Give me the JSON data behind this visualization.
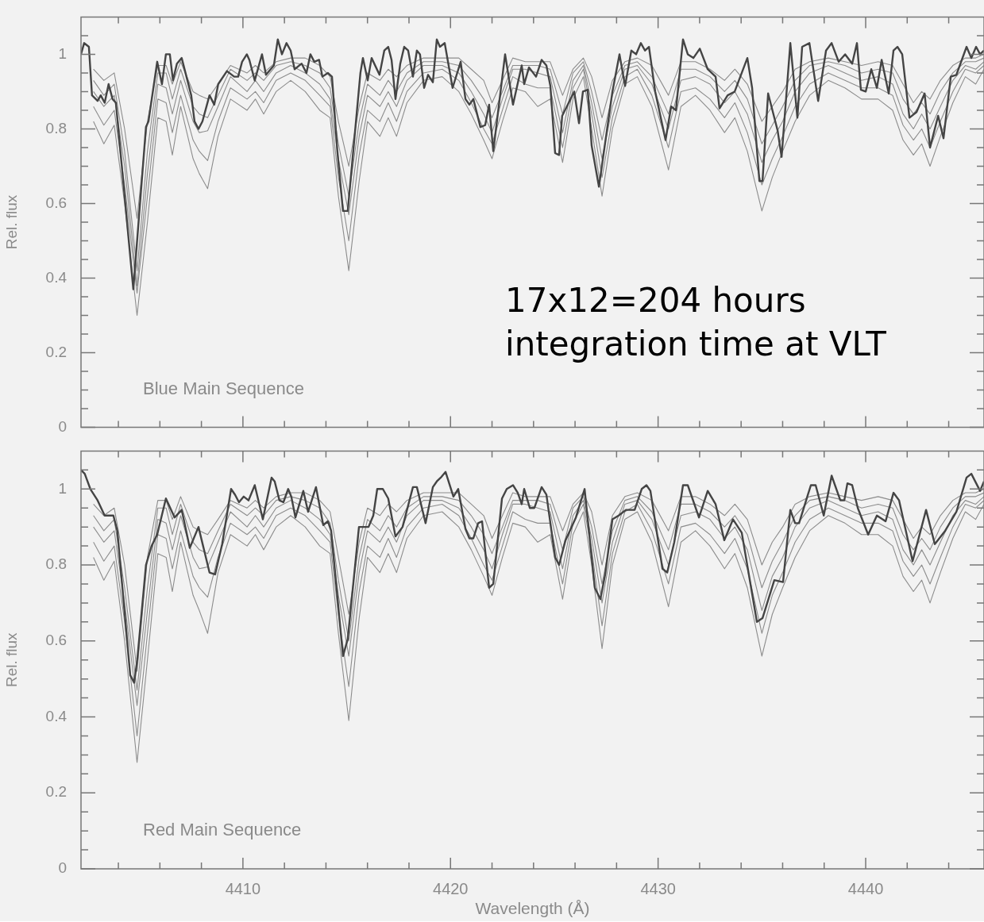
{
  "chart_data": [
    {
      "type": "line",
      "ylabel": "Rel. flux",
      "ylim": [
        0,
        1.1
      ],
      "xlim": [
        4402.2,
        4445.7
      ],
      "tick_labels": "y",
      "legend": false,
      "marker": "none",
      "line_style": "solid",
      "yticks": [
        0,
        {
          "value": 0.05,
          "label": null
        },
        {
          "value": 0.1,
          "label": null
        },
        {
          "value": 0.15,
          "label": null
        },
        0.2,
        {
          "value": 0.25,
          "label": null
        },
        {
          "value": 0.3,
          "label": null
        },
        {
          "value": 0.35,
          "label": null
        },
        0.4,
        {
          "value": 0.45,
          "label": null
        },
        {
          "value": 0.5,
          "label": null
        },
        {
          "value": 0.55,
          "label": null
        },
        0.6,
        {
          "value": 0.65,
          "label": null
        },
        {
          "value": 0.7,
          "label": null
        },
        {
          "value": 0.75,
          "label": null
        },
        0.8,
        {
          "value": 0.85,
          "label": null
        },
        {
          "value": 0.9,
          "label": null
        },
        {
          "value": 0.95,
          "label": null
        },
        1,
        {
          "value": 1.05,
          "label": null
        }
      ],
      "xticks": [
        {
          "value": 4404,
          "label": null
        },
        {
          "value": 4406,
          "label": null
        },
        {
          "value": 4408,
          "label": null
        },
        4410,
        {
          "value": 4412,
          "label": null
        },
        {
          "value": 4414,
          "label": null
        },
        {
          "value": 4416,
          "label": null
        },
        {
          "value": 4418,
          "label": null
        },
        4420,
        {
          "value": 4422,
          "label": null
        },
        {
          "value": 4424,
          "label": null
        },
        {
          "value": 4426,
          "label": null
        },
        {
          "value": 4428,
          "label": null
        },
        4430,
        {
          "value": 4432,
          "label": null
        },
        {
          "value": 4434,
          "label": null
        },
        {
          "value": 4436,
          "label": null
        },
        {
          "value": 4438,
          "label": null
        },
        4440,
        {
          "value": 4442,
          "label": null
        },
        {
          "value": 4444,
          "label": null
        }
      ],
      "annotations": [
        "Blue Main Sequence",
        "17x12=204 hours integration time at VLT"
      ],
      "x": [
        4402.8,
        4403.3,
        4403.8,
        4404.3,
        4404.9,
        4405.4,
        4405.9,
        4406.3,
        4406.6,
        4407.0,
        4407.6,
        4407.9,
        4408.3,
        4408.8,
        4409.4,
        4410.2,
        4410.6,
        4411.0,
        4411.6,
        4412.3,
        4413.0,
        4413.7,
        4414.2,
        4414.6,
        4415.1,
        4415.6,
        4416.0,
        4416.6,
        4417.0,
        4417.4,
        4417.9,
        4418.7,
        4419.6,
        4420.4,
        4421.0,
        4421.6,
        4422.0,
        4422.5,
        4423.0,
        4423.6,
        4424.2,
        4424.8,
        4425.4,
        4425.9,
        4426.4,
        4426.8,
        4427.3,
        4427.8,
        4428.4,
        4429.0,
        4429.7,
        4430.5,
        4431.1,
        4431.8,
        4432.5,
        4433.2,
        4433.7,
        4434.3,
        4435.0,
        4435.5,
        4436.0,
        4436.6,
        4437.3,
        4438.2,
        4439.0,
        4439.8,
        4440.6,
        4441.3,
        4441.8,
        4442.3,
        4442.7,
        4443.1,
        4443.6,
        4444.2,
        4444.8,
        4445.3,
        4445.7
      ],
      "series": [
        {
          "color": "#444444",
          "x": [
            4402.2,
            4402.35,
            4402.58,
            4402.73,
            4403.0,
            4403.15,
            4403.34,
            4403.53,
            4403.72,
            4403.88,
            4404.72,
            4405.33,
            4405.45,
            4405.87,
            4406.1,
            4406.29,
            4406.48,
            4406.63,
            4406.82,
            4407.05,
            4407.51,
            4407.67,
            4407.86,
            4408.05,
            4408.39,
            4408.62,
            4408.81,
            4409.23,
            4409.58,
            4409.77,
            4409.96,
            4410.19,
            4410.31,
            4410.57,
            4410.92,
            4411.11,
            4411.49,
            4411.68,
            4411.88,
            4412.1,
            4412.3,
            4412.49,
            4412.83,
            4413.06,
            4413.25,
            4413.44,
            4413.67,
            4413.83,
            4414.09,
            4414.29,
            4414.55,
            4414.82,
            4415.05,
            4415.66,
            4415.78,
            4416.01,
            4416.2,
            4416.58,
            4416.81,
            4417.0,
            4417.16,
            4417.35,
            4417.58,
            4417.77,
            4417.96,
            4418.19,
            4418.38,
            4418.53,
            4418.73,
            4418.92,
            4419.15,
            4419.34,
            4419.49,
            4419.72,
            4420.1,
            4420.49,
            4420.72,
            4420.91,
            4421.1,
            4421.44,
            4421.67,
            4421.86,
            4422.06,
            4422.63,
            4423.01,
            4423.43,
            4423.55,
            4423.78,
            4424.12,
            4424.39,
            4424.62,
            4424.81,
            4425.04,
            4425.23,
            4425.38,
            4425.96,
            4426.19,
            4426.38,
            4426.61,
            4426.8,
            4427.15,
            4427.8,
            4428.14,
            4428.41,
            4428.71,
            4428.94,
            4429.17,
            4429.37,
            4429.56,
            4429.86,
            4430.36,
            4430.63,
            4430.86,
            4431.2,
            4431.43,
            4431.7,
            4432.01,
            4432.39,
            4432.77,
            4432.96,
            4433.35,
            4433.69,
            4434.3,
            4434.53,
            4434.88,
            4435.03,
            4435.3,
            4435.76,
            4435.95,
            4436.37,
            4436.71,
            4436.94,
            4437.29,
            4437.71,
            4438.09,
            4438.36,
            4438.7,
            4439.01,
            4439.35,
            4439.58,
            4439.77,
            4440.0,
            4440.27,
            4440.54,
            4440.77,
            4441.11,
            4441.34,
            4441.53,
            4441.76,
            4442.11,
            4442.45,
            4442.84,
            4443.1,
            4443.49,
            4443.75,
            4444.1,
            4444.37,
            4444.86,
            4445.09,
            4445.32,
            4445.51,
            4445.7
          ],
          "values": [
            1.0,
            1.03,
            1.02,
            0.89,
            0.875,
            0.89,
            0.87,
            0.92,
            0.88,
            0.87,
            0.37,
            0.805,
            0.82,
            0.98,
            0.92,
            1.0,
            1.0,
            0.93,
            0.975,
            0.99,
            0.89,
            0.82,
            0.8,
            0.82,
            0.89,
            0.865,
            0.92,
            0.955,
            0.94,
            0.94,
            0.98,
            1.0,
            0.985,
            0.93,
            1.0,
            0.945,
            0.97,
            1.04,
            1.0,
            1.03,
            1.01,
            0.96,
            0.975,
            0.95,
            1.0,
            0.98,
            0.985,
            0.94,
            0.95,
            0.94,
            0.74,
            0.58,
            0.58,
            0.95,
            0.99,
            0.93,
            0.99,
            0.945,
            1.01,
            1.02,
            0.985,
            0.88,
            0.975,
            1.02,
            1.01,
            0.94,
            1.01,
            1.0,
            0.91,
            0.945,
            0.925,
            1.04,
            1.02,
            1.03,
            0.91,
            0.98,
            0.88,
            0.865,
            0.88,
            0.805,
            0.81,
            0.865,
            0.74,
            1.0,
            0.865,
            0.97,
            0.92,
            0.965,
            0.94,
            0.985,
            0.97,
            0.915,
            0.735,
            0.73,
            0.835,
            0.9,
            0.815,
            0.9,
            0.905,
            0.755,
            0.645,
            0.9,
            1.0,
            0.915,
            1.01,
            1.0,
            1.03,
            1.01,
            1.02,
            0.9,
            0.77,
            0.86,
            0.85,
            1.04,
            1.0,
            0.99,
            1.015,
            0.96,
            0.94,
            0.855,
            0.89,
            0.9,
            0.99,
            0.91,
            0.66,
            0.66,
            0.895,
            0.795,
            0.725,
            1.03,
            0.83,
            1.02,
            1.03,
            0.875,
            1.01,
            1.03,
            0.98,
            1.0,
            0.975,
            1.03,
            0.905,
            0.9,
            0.96,
            0.91,
            0.985,
            0.895,
            1.01,
            1.02,
            1.0,
            0.83,
            0.845,
            0.895,
            0.75,
            0.835,
            0.775,
            0.94,
            0.945,
            1.02,
            0.99,
            1.02,
            1.0,
            1.01
          ]
        },
        {
          "color": "#8c8c8c",
          "values": [
            0.96,
            0.93,
            0.95,
            0.8,
            0.56,
            0.82,
            0.97,
            0.97,
            0.92,
            0.98,
            0.9,
            0.89,
            0.88,
            0.92,
            0.97,
            0.95,
            0.97,
            0.95,
            0.98,
            0.99,
            0.99,
            0.97,
            0.94,
            0.82,
            0.7,
            0.86,
            0.95,
            0.93,
            0.96,
            0.94,
            0.97,
            0.99,
            0.99,
            0.99,
            0.96,
            0.93,
            0.87,
            0.93,
            0.99,
            0.98,
            0.98,
            0.98,
            0.89,
            0.96,
            0.99,
            0.94,
            0.83,
            0.93,
            0.98,
            0.99,
            0.97,
            0.89,
            0.98,
            0.98,
            0.96,
            0.93,
            0.96,
            0.92,
            0.82,
            0.86,
            0.9,
            0.96,
            0.98,
            0.99,
            0.98,
            0.97,
            0.98,
            0.97,
            0.92,
            0.87,
            0.9,
            0.88,
            0.93,
            0.97,
            0.99,
            0.99,
            1.0
          ]
        },
        {
          "color": "#8c8c8c",
          "values": [
            0.93,
            0.89,
            0.92,
            0.74,
            0.42,
            0.74,
            0.95,
            0.95,
            0.88,
            0.96,
            0.86,
            0.84,
            0.83,
            0.89,
            0.96,
            0.93,
            0.95,
            0.93,
            0.97,
            0.98,
            0.97,
            0.95,
            0.91,
            0.76,
            0.62,
            0.82,
            0.92,
            0.89,
            0.93,
            0.9,
            0.95,
            0.98,
            0.98,
            0.97,
            0.93,
            0.88,
            0.83,
            0.9,
            0.97,
            0.97,
            0.97,
            0.96,
            0.84,
            0.95,
            0.98,
            0.9,
            0.77,
            0.89,
            0.97,
            0.98,
            0.94,
            0.84,
            0.96,
            0.96,
            0.94,
            0.9,
            0.93,
            0.88,
            0.76,
            0.81,
            0.86,
            0.93,
            0.97,
            0.98,
            0.97,
            0.95,
            0.96,
            0.95,
            0.88,
            0.84,
            0.87,
            0.84,
            0.9,
            0.95,
            0.98,
            0.98,
            0.99
          ]
        },
        {
          "color": "#8c8c8c",
          "values": [
            0.9,
            0.86,
            0.89,
            0.7,
            0.38,
            0.68,
            0.92,
            0.91,
            0.84,
            0.93,
            0.82,
            0.79,
            0.795,
            0.86,
            0.94,
            0.9,
            0.93,
            0.9,
            0.95,
            0.97,
            0.95,
            0.92,
            0.88,
            0.72,
            0.57,
            0.78,
            0.89,
            0.86,
            0.9,
            0.86,
            0.93,
            0.97,
            0.97,
            0.95,
            0.9,
            0.84,
            0.79,
            0.88,
            0.96,
            0.96,
            0.95,
            0.94,
            0.79,
            0.93,
            0.97,
            0.87,
            0.72,
            0.86,
            0.96,
            0.97,
            0.92,
            0.8,
            0.93,
            0.94,
            0.92,
            0.87,
            0.9,
            0.84,
            0.71,
            0.77,
            0.82,
            0.9,
            0.95,
            0.97,
            0.95,
            0.93,
            0.94,
            0.92,
            0.84,
            0.8,
            0.84,
            0.8,
            0.86,
            0.93,
            0.97,
            0.96,
            0.98
          ]
        },
        {
          "color": "#8c8c8c",
          "values": [
            0.86,
            0.81,
            0.85,
            0.65,
            0.36,
            0.62,
            0.88,
            0.87,
            0.79,
            0.89,
            0.77,
            0.74,
            0.715,
            0.82,
            0.91,
            0.88,
            0.9,
            0.87,
            0.93,
            0.95,
            0.93,
            0.89,
            0.86,
            0.67,
            0.5,
            0.73,
            0.85,
            0.82,
            0.87,
            0.82,
            0.9,
            0.95,
            0.96,
            0.93,
            0.87,
            0.8,
            0.76,
            0.85,
            0.94,
            0.92,
            0.91,
            0.91,
            0.75,
            0.91,
            0.96,
            0.84,
            0.67,
            0.83,
            0.94,
            0.96,
            0.89,
            0.75,
            0.9,
            0.91,
            0.88,
            0.83,
            0.87,
            0.79,
            0.65,
            0.72,
            0.78,
            0.86,
            0.92,
            0.95,
            0.93,
            0.91,
            0.91,
            0.89,
            0.81,
            0.77,
            0.8,
            0.75,
            0.82,
            0.9,
            0.96,
            0.95,
            0.97
          ]
        },
        {
          "color": "#8c8c8c",
          "values": [
            0.82,
            0.76,
            0.81,
            0.6,
            0.3,
            0.55,
            0.83,
            0.82,
            0.73,
            0.86,
            0.72,
            0.68,
            0.64,
            0.78,
            0.88,
            0.85,
            0.88,
            0.84,
            0.9,
            0.93,
            0.9,
            0.85,
            0.83,
            0.62,
            0.42,
            0.66,
            0.82,
            0.78,
            0.83,
            0.78,
            0.87,
            0.93,
            0.94,
            0.9,
            0.84,
            0.77,
            0.72,
            0.82,
            0.91,
            0.9,
            0.86,
            0.88,
            0.71,
            0.88,
            0.94,
            0.8,
            0.62,
            0.8,
            0.92,
            0.94,
            0.86,
            0.69,
            0.86,
            0.89,
            0.85,
            0.79,
            0.83,
            0.74,
            0.58,
            0.67,
            0.74,
            0.82,
            0.89,
            0.93,
            0.91,
            0.88,
            0.88,
            0.85,
            0.77,
            0.73,
            0.76,
            0.7,
            0.78,
            0.87,
            0.94,
            0.92,
            0.96
          ]
        }
      ]
    },
    {
      "type": "line",
      "ylabel": "Rel. flux",
      "xlabel": "Wavelength (Å)",
      "ylim": [
        0,
        1.1
      ],
      "xlim": [
        4402.2,
        4445.7
      ],
      "legend": false,
      "marker": "none",
      "line_style": "solid",
      "yticks": [
        0,
        {
          "value": 0.05,
          "label": null
        },
        {
          "value": 0.1,
          "label": null
        },
        {
          "value": 0.15,
          "label": null
        },
        0.2,
        {
          "value": 0.25,
          "label": null
        },
        {
          "value": 0.3,
          "label": null
        },
        {
          "value": 0.35,
          "label": null
        },
        0.4,
        {
          "value": 0.45,
          "label": null
        },
        {
          "value": 0.5,
          "label": null
        },
        {
          "value": 0.55,
          "label": null
        },
        0.6,
        {
          "value": 0.65,
          "label": null
        },
        {
          "value": 0.7,
          "label": null
        },
        {
          "value": 0.75,
          "label": null
        },
        0.8,
        {
          "value": 0.85,
          "label": null
        },
        {
          "value": 0.9,
          "label": null
        },
        {
          "value": 0.95,
          "label": null
        },
        1,
        {
          "value": 1.05,
          "label": null
        }
      ],
      "xticks": [
        {
          "value": 4404,
          "label": null
        },
        {
          "value": 4406,
          "label": null
        },
        {
          "value": 4408,
          "label": null
        },
        4410,
        {
          "value": 4412,
          "label": null
        },
        {
          "value": 4414,
          "label": null
        },
        {
          "value": 4416,
          "label": null
        },
        {
          "value": 4418,
          "label": null
        },
        4420,
        {
          "value": 4422,
          "label": null
        },
        {
          "value": 4424,
          "label": null
        },
        {
          "value": 4426,
          "label": null
        },
        {
          "value": 4428,
          "label": null
        },
        4430,
        {
          "value": 4432,
          "label": null
        },
        {
          "value": 4434,
          "label": null
        },
        {
          "value": 4436,
          "label": null
        },
        {
          "value": 4438,
          "label": null
        },
        4440,
        {
          "value": 4442,
          "label": null
        },
        {
          "value": 4444,
          "label": null
        }
      ],
      "annotations": [
        "Red Main Sequence"
      ],
      "x": [
        4402.8,
        4403.3,
        4403.8,
        4404.3,
        4404.9,
        4405.4,
        4405.9,
        4406.3,
        4406.6,
        4407.0,
        4407.6,
        4407.9,
        4408.3,
        4408.8,
        4409.4,
        4410.2,
        4410.6,
        4411.0,
        4411.6,
        4412.3,
        4413.0,
        4413.7,
        4414.2,
        4414.6,
        4415.1,
        4415.6,
        4416.0,
        4416.6,
        4417.0,
        4417.4,
        4417.9,
        4418.7,
        4419.6,
        4420.4,
        4421.0,
        4421.6,
        4422.0,
        4422.5,
        4423.0,
        4423.6,
        4424.2,
        4424.8,
        4425.4,
        4425.9,
        4426.4,
        4426.8,
        4427.3,
        4427.8,
        4428.4,
        4429.0,
        4429.7,
        4430.5,
        4431.1,
        4431.8,
        4432.5,
        4433.2,
        4433.7,
        4434.3,
        4435.0,
        4435.5,
        4436.0,
        4436.6,
        4437.3,
        4438.2,
        4439.0,
        4439.8,
        4440.6,
        4441.3,
        4441.8,
        4442.3,
        4442.7,
        4443.1,
        4443.6,
        4444.2,
        4444.8,
        4445.3,
        4445.7
      ],
      "series": [
        {
          "color": "#444444",
          "x": [
            4402.2,
            4402.38,
            4402.65,
            4403.0,
            4403.34,
            4403.76,
            4403.95,
            4404.57,
            4404.76,
            4404.91,
            4405.33,
            4405.6,
            4405.87,
            4406.29,
            4406.71,
            4407.05,
            4407.44,
            4407.86,
            4408.39,
            4408.66,
            4409.0,
            4409.43,
            4409.62,
            4409.81,
            4410.04,
            4410.27,
            4410.57,
            4410.96,
            4411.38,
            4411.53,
            4411.76,
            4411.95,
            4412.18,
            4412.33,
            4412.53,
            4412.91,
            4413.14,
            4413.52,
            4413.87,
            4414.09,
            4414.25,
            4414.82,
            4415.05,
            4415.59,
            4416.05,
            4416.28,
            4416.47,
            4416.74,
            4417.0,
            4417.35,
            4417.69,
            4418.19,
            4418.38,
            4418.8,
            4419.15,
            4419.34,
            4419.53,
            4419.76,
            4420.14,
            4420.37,
            4420.72,
            4420.91,
            4421.1,
            4421.33,
            4421.52,
            4421.86,
            4422.06,
            4422.48,
            4422.71,
            4423.01,
            4423.24,
            4423.43,
            4423.55,
            4423.82,
            4424.04,
            4424.39,
            4424.62,
            4425.04,
            4425.23,
            4425.54,
            4426.04,
            4426.46,
            4426.95,
            4427.22,
            4427.45,
            4427.8,
            4428.1,
            4428.45,
            4428.87,
            4429.21,
            4429.44,
            4429.63,
            4430.21,
            4430.44,
            4430.78,
            4431.2,
            4431.43,
            4431.97,
            4432.39,
            4432.77,
            4433.19,
            4433.61,
            4434.03,
            4434.76,
            4435.03,
            4435.6,
            4436.02,
            4436.37,
            4436.6,
            4436.79,
            4437.36,
            4437.59,
            4437.98,
            4438.36,
            4438.78,
            4438.97,
            4439.12,
            4439.35,
            4439.62,
            4440.12,
            4440.54,
            4440.96,
            4441.34,
            4441.61,
            4442.26,
            4442.91,
            4443.33,
            4443.83,
            4444.37,
            4444.86,
            4445.09,
            4445.51,
            4445.7
          ],
          "values": [
            1.05,
            1.04,
            1.0,
            0.97,
            0.93,
            0.93,
            0.89,
            0.51,
            0.49,
            0.55,
            0.8,
            0.85,
            0.88,
            0.975,
            0.925,
            0.945,
            0.845,
            0.9,
            0.78,
            0.775,
            0.855,
            1.0,
            0.985,
            0.965,
            0.98,
            0.97,
            1.01,
            0.92,
            1.03,
            1.02,
            0.97,
            0.965,
            1.0,
            0.98,
            0.925,
            0.995,
            0.94,
            1.005,
            0.905,
            0.915,
            0.89,
            0.56,
            0.605,
            0.9,
            0.9,
            0.93,
            1.0,
            1.0,
            0.975,
            0.875,
            0.9,
            1.005,
            1.005,
            0.91,
            1.005,
            1.02,
            1.03,
            1.045,
            0.98,
            1.0,
            0.895,
            0.87,
            0.87,
            0.91,
            0.915,
            0.74,
            0.75,
            0.975,
            1.0,
            1.01,
            0.99,
            0.96,
            1.0,
            0.95,
            0.95,
            1.005,
            0.985,
            0.82,
            0.8,
            0.865,
            0.925,
            1.0,
            0.74,
            0.71,
            0.775,
            0.92,
            0.93,
            0.945,
            0.945,
            1.0,
            1.01,
            0.995,
            0.79,
            0.78,
            0.86,
            1.01,
            1.01,
            0.925,
            0.995,
            0.96,
            0.865,
            0.92,
            0.885,
            0.65,
            0.66,
            0.76,
            0.755,
            0.945,
            0.91,
            0.91,
            1.01,
            1.01,
            0.93,
            1.035,
            0.97,
            0.97,
            1.015,
            1.01,
            0.95,
            0.88,
            0.93,
            0.915,
            0.99,
            0.97,
            0.81,
            0.945,
            0.855,
            0.89,
            0.94,
            1.03,
            1.04,
            0.995,
            1.02
          ]
        },
        {
          "color": "#8c8c8c",
          "values": [
            0.96,
            0.93,
            0.95,
            0.8,
            0.52,
            0.82,
            0.97,
            0.97,
            0.92,
            0.98,
            0.9,
            0.89,
            0.88,
            0.92,
            0.97,
            0.95,
            0.97,
            0.95,
            0.98,
            0.99,
            0.99,
            0.97,
            0.94,
            0.82,
            0.67,
            0.86,
            0.95,
            0.93,
            0.96,
            0.94,
            0.97,
            0.99,
            0.99,
            0.99,
            0.96,
            0.93,
            0.87,
            0.93,
            0.99,
            0.98,
            0.98,
            0.98,
            0.89,
            0.96,
            0.99,
            0.94,
            0.8,
            0.93,
            0.98,
            0.99,
            0.97,
            0.89,
            0.98,
            0.98,
            0.96,
            0.93,
            0.96,
            0.92,
            0.8,
            0.86,
            0.9,
            0.96,
            0.98,
            0.99,
            0.98,
            0.97,
            0.98,
            0.97,
            0.92,
            0.87,
            0.9,
            0.88,
            0.93,
            0.97,
            0.99,
            0.99,
            1.0
          ]
        },
        {
          "color": "#8c8c8c",
          "values": [
            0.93,
            0.89,
            0.92,
            0.74,
            0.47,
            0.74,
            0.95,
            0.95,
            0.88,
            0.96,
            0.86,
            0.84,
            0.83,
            0.89,
            0.96,
            0.93,
            0.95,
            0.93,
            0.97,
            0.98,
            0.97,
            0.95,
            0.91,
            0.76,
            0.6,
            0.82,
            0.92,
            0.89,
            0.93,
            0.9,
            0.95,
            0.98,
            0.98,
            0.97,
            0.93,
            0.88,
            0.83,
            0.9,
            0.97,
            0.97,
            0.97,
            0.96,
            0.84,
            0.95,
            0.98,
            0.9,
            0.75,
            0.89,
            0.97,
            0.98,
            0.94,
            0.84,
            0.96,
            0.96,
            0.94,
            0.9,
            0.93,
            0.88,
            0.74,
            0.81,
            0.86,
            0.93,
            0.97,
            0.98,
            0.97,
            0.95,
            0.96,
            0.95,
            0.88,
            0.84,
            0.87,
            0.84,
            0.9,
            0.95,
            0.98,
            0.98,
            0.99
          ]
        },
        {
          "color": "#8c8c8c",
          "values": [
            0.9,
            0.86,
            0.89,
            0.7,
            0.43,
            0.68,
            0.92,
            0.91,
            0.84,
            0.93,
            0.82,
            0.79,
            0.795,
            0.86,
            0.94,
            0.9,
            0.93,
            0.9,
            0.95,
            0.97,
            0.95,
            0.92,
            0.88,
            0.72,
            0.56,
            0.78,
            0.89,
            0.86,
            0.9,
            0.86,
            0.93,
            0.97,
            0.97,
            0.95,
            0.9,
            0.84,
            0.79,
            0.88,
            0.96,
            0.96,
            0.95,
            0.94,
            0.79,
            0.93,
            0.97,
            0.87,
            0.7,
            0.86,
            0.96,
            0.97,
            0.92,
            0.8,
            0.93,
            0.94,
            0.92,
            0.87,
            0.9,
            0.84,
            0.68,
            0.77,
            0.82,
            0.9,
            0.95,
            0.97,
            0.95,
            0.93,
            0.94,
            0.92,
            0.84,
            0.8,
            0.84,
            0.8,
            0.86,
            0.93,
            0.97,
            0.96,
            0.98
          ]
        },
        {
          "color": "#8c8c8c",
          "values": [
            0.86,
            0.81,
            0.85,
            0.65,
            0.35,
            0.62,
            0.88,
            0.87,
            0.79,
            0.89,
            0.77,
            0.74,
            0.715,
            0.82,
            0.91,
            0.88,
            0.9,
            0.87,
            0.93,
            0.95,
            0.93,
            0.89,
            0.86,
            0.67,
            0.48,
            0.73,
            0.85,
            0.82,
            0.87,
            0.82,
            0.9,
            0.95,
            0.96,
            0.93,
            0.87,
            0.8,
            0.76,
            0.85,
            0.94,
            0.92,
            0.91,
            0.91,
            0.75,
            0.91,
            0.96,
            0.84,
            0.64,
            0.83,
            0.94,
            0.96,
            0.89,
            0.75,
            0.9,
            0.91,
            0.88,
            0.83,
            0.87,
            0.79,
            0.62,
            0.72,
            0.78,
            0.86,
            0.92,
            0.95,
            0.93,
            0.91,
            0.91,
            0.89,
            0.81,
            0.77,
            0.8,
            0.75,
            0.82,
            0.9,
            0.96,
            0.95,
            0.97
          ]
        },
        {
          "color": "#8c8c8c",
          "values": [
            0.82,
            0.76,
            0.81,
            0.6,
            0.28,
            0.55,
            0.83,
            0.82,
            0.73,
            0.86,
            0.72,
            0.68,
            0.62,
            0.78,
            0.88,
            0.85,
            0.88,
            0.84,
            0.9,
            0.93,
            0.9,
            0.85,
            0.83,
            0.62,
            0.39,
            0.66,
            0.82,
            0.78,
            0.83,
            0.78,
            0.87,
            0.93,
            0.94,
            0.9,
            0.84,
            0.77,
            0.72,
            0.82,
            0.91,
            0.9,
            0.86,
            0.88,
            0.71,
            0.88,
            0.94,
            0.8,
            0.58,
            0.8,
            0.92,
            0.94,
            0.86,
            0.69,
            0.86,
            0.89,
            0.85,
            0.79,
            0.83,
            0.74,
            0.56,
            0.67,
            0.74,
            0.82,
            0.89,
            0.93,
            0.91,
            0.88,
            0.88,
            0.85,
            0.77,
            0.73,
            0.76,
            0.7,
            0.78,
            0.87,
            0.94,
            0.92,
            0.96
          ]
        }
      ]
    }
  ]
}
